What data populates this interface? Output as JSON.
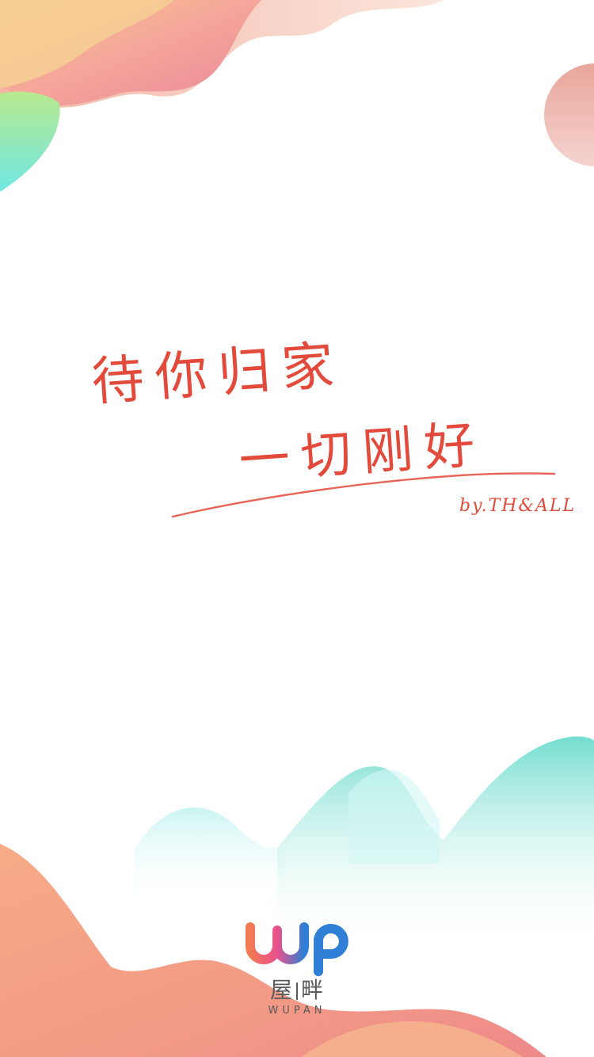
{
  "colors": {
    "background": "#ffffff",
    "slogan_red": "#e24a3b",
    "brand_orange": "#f27a52",
    "brand_pink": "#e8518b",
    "brand_blue": "#2f7fd6",
    "logo_text_gray": "#5a5a5a",
    "wave_teal": "#7fdfd2",
    "wave_coral": "#f4a07a"
  },
  "splash": {
    "slogan_line_1": "待你归家",
    "slogan_line_2": "一切刚好",
    "signature": "by.TH&ALL"
  },
  "brand": {
    "logo_mark": "wp",
    "name_cn_left": "屋",
    "name_cn_right": "畔",
    "name_en": "WUPAN"
  }
}
